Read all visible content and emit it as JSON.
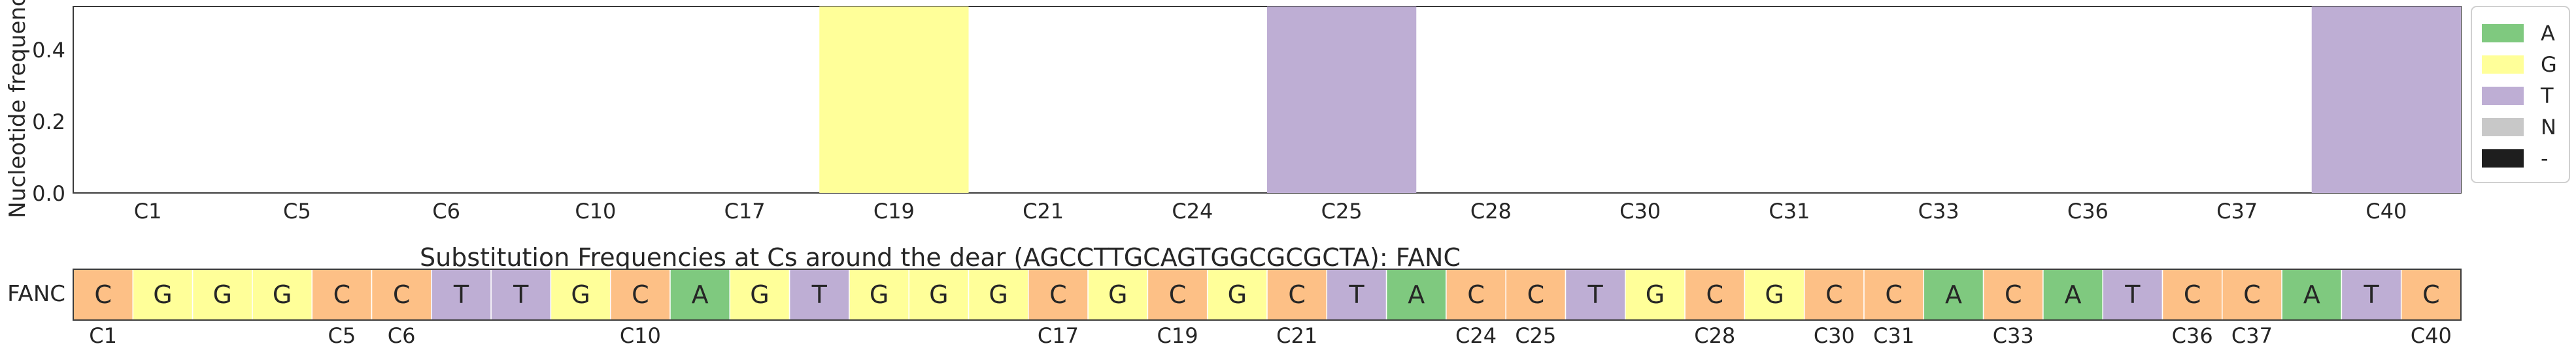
{
  "chart_data": [
    {
      "type": "bar",
      "stacked": true,
      "ylabel": "Nucleotide frequency",
      "xlabel": "",
      "title": "",
      "ylim": [
        0,
        0.52
      ],
      "yticks": [
        "0.0",
        "0.2",
        "0.4"
      ],
      "ytick_values": [
        0.0,
        0.2,
        0.4
      ],
      "categories": [
        "C1",
        "C5",
        "C6",
        "C10",
        "C17",
        "C19",
        "C21",
        "C24",
        "C25",
        "C28",
        "C30",
        "C31",
        "C33",
        "C36",
        "C37",
        "C40"
      ],
      "series": [
        {
          "name": "A",
          "color": "#7fc97f",
          "values": [
            0,
            0,
            0,
            0,
            0,
            0,
            0,
            0,
            0,
            0,
            0,
            0,
            0,
            0,
            0,
            0
          ]
        },
        {
          "name": "G",
          "color": "#ffff99",
          "values": [
            0,
            0,
            0,
            0,
            0,
            0.52,
            0,
            0,
            0,
            0,
            0,
            0,
            0,
            0,
            0,
            0
          ]
        },
        {
          "name": "T",
          "color": "#beaed4",
          "values": [
            0,
            0,
            0,
            0,
            0,
            0,
            0,
            0,
            0.52,
            0,
            0,
            0,
            0,
            0,
            0,
            0.52
          ]
        },
        {
          "name": "N",
          "color": "#c8c8c8",
          "values": [
            0,
            0,
            0,
            0,
            0,
            0,
            0,
            0,
            0,
            0,
            0,
            0,
            0,
            0,
            0,
            0
          ]
        },
        {
          "name": "-",
          "color": "#1e1e1e",
          "values": [
            0,
            0,
            0,
            0,
            0,
            0,
            0,
            0,
            0,
            0,
            0,
            0,
            0,
            0,
            0,
            0
          ]
        }
      ],
      "legend_position": "right",
      "grid": false
    },
    {
      "type": "table",
      "title": "Substitution Frequencies at Cs around the dear (AGCCTTGCAGTGGCGCGCTA): FANC",
      "row_label": "FANC",
      "sequence": [
        "C",
        "G",
        "G",
        "G",
        "C",
        "C",
        "T",
        "T",
        "G",
        "C",
        "A",
        "G",
        "T",
        "G",
        "G",
        "G",
        "C",
        "G",
        "C",
        "G",
        "C",
        "T",
        "A",
        "C",
        "C",
        "T",
        "G",
        "C",
        "G",
        "C",
        "C",
        "A",
        "C",
        "A",
        "T",
        "C",
        "C",
        "A",
        "T",
        "C"
      ],
      "base_colors": {
        "A": "#7fc97f",
        "G": "#ffff99",
        "T": "#beaed4",
        "C": "#fdc086"
      },
      "position_labels": [
        {
          "index": 0,
          "label": "C1"
        },
        {
          "index": 4,
          "label": "C5"
        },
        {
          "index": 5,
          "label": "C6"
        },
        {
          "index": 9,
          "label": "C10"
        },
        {
          "index": 16,
          "label": "C17"
        },
        {
          "index": 18,
          "label": "C19"
        },
        {
          "index": 20,
          "label": "C21"
        },
        {
          "index": 23,
          "label": "C24"
        },
        {
          "index": 24,
          "label": "C25"
        },
        {
          "index": 27,
          "label": "C28"
        },
        {
          "index": 29,
          "label": "C30"
        },
        {
          "index": 30,
          "label": "C31"
        },
        {
          "index": 32,
          "label": "C33"
        },
        {
          "index": 35,
          "label": "C36"
        },
        {
          "index": 36,
          "label": "C37"
        },
        {
          "index": 39,
          "label": "C40"
        }
      ]
    }
  ]
}
